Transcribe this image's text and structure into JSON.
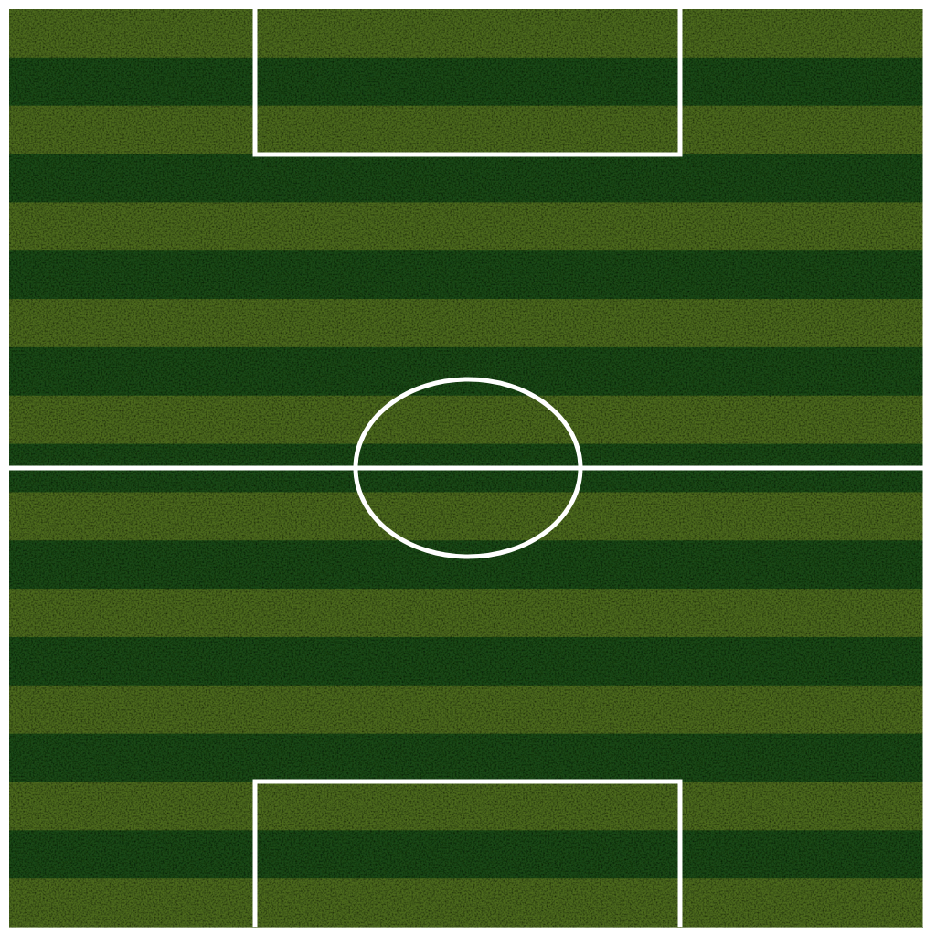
{
  "pitch": {
    "stripe_colors": {
      "light": "#4d6b1f",
      "dark": "#1a4a16"
    },
    "stripe_count": 19,
    "first_stripe": "light",
    "line_color": "#ffffff",
    "background": "#ffffff"
  }
}
